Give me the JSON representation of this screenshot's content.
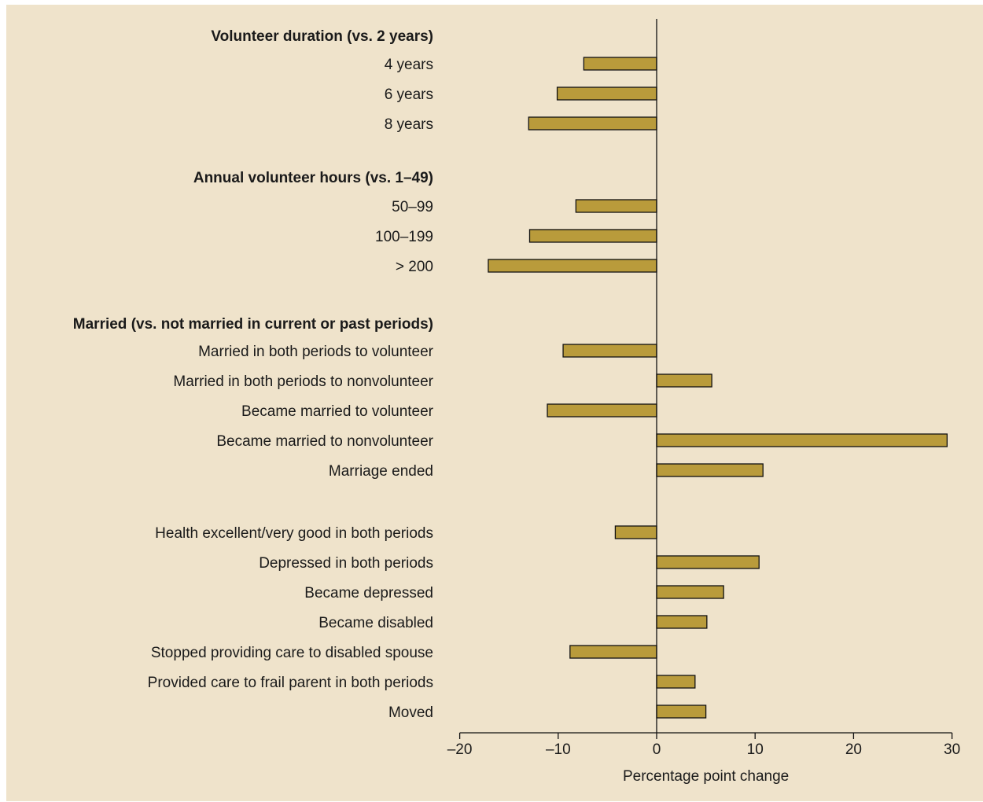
{
  "chart_data": {
    "type": "bar",
    "orientation": "horizontal",
    "title": "",
    "xlabel": "Percentage point change",
    "ylabel": "",
    "xlim": [
      -20,
      30
    ],
    "xticks": [
      -20,
      -10,
      0,
      10,
      20,
      30
    ],
    "xtick_labels": [
      "–20",
      "–10",
      "0",
      "10",
      "20",
      "30"
    ],
    "grid": false,
    "bar_color": "#b99b3b",
    "groups": [
      {
        "header": "Volunteer duration (vs. 2 years)",
        "items": [
          {
            "label": "4 years",
            "value": -7.4
          },
          {
            "label": "6 years",
            "value": -10.1
          },
          {
            "label": "8 years",
            "value": -13.0
          }
        ]
      },
      {
        "header": "Annual volunteer hours (vs. 1–49)",
        "items": [
          {
            "label": "50–99",
            "value": -8.2
          },
          {
            "label": "100–199",
            "value": -12.9
          },
          {
            "label": "> 200",
            "value": -17.1
          }
        ]
      },
      {
        "header": "Married (vs. not married in current or past periods)",
        "items": [
          {
            "label": "Married in both periods to volunteer",
            "value": -9.5
          },
          {
            "label": "Married in both periods to nonvolunteer",
            "value": 5.6
          },
          {
            "label": "Became married to volunteer",
            "value": -11.1
          },
          {
            "label": "Became married to nonvolunteer",
            "value": 29.5
          },
          {
            "label": "Marriage ended",
            "value": 10.8
          }
        ]
      },
      {
        "header": "",
        "items": [
          {
            "label": "Health excellent/very good in both periods",
            "value": -4.2
          },
          {
            "label": "Depressed in both periods",
            "value": 10.4
          },
          {
            "label": "Became depressed",
            "value": 6.8
          },
          {
            "label": "Became disabled",
            "value": 5.1
          },
          {
            "label": "Stopped providing care to disabled spouse",
            "value": -8.8
          },
          {
            "label": "Provided care to frail parent in both periods",
            "value": 3.9
          },
          {
            "label": "Moved",
            "value": 5.0
          }
        ]
      }
    ]
  }
}
